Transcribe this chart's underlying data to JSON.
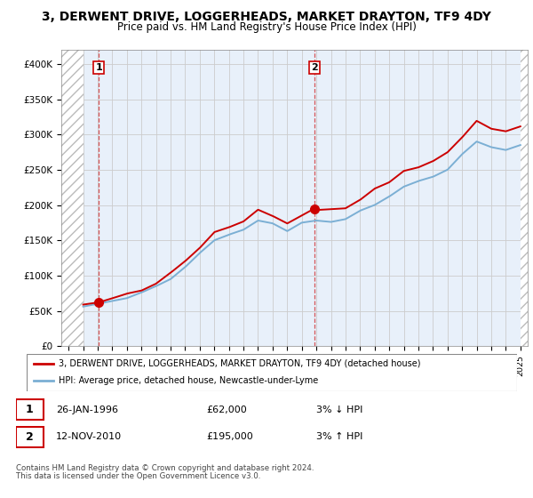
{
  "title": "3, DERWENT DRIVE, LOGGERHEADS, MARKET DRAYTON, TF9 4DY",
  "subtitle": "Price paid vs. HM Land Registry's House Price Index (HPI)",
  "legend_line1": "3, DERWENT DRIVE, LOGGERHEADS, MARKET DRAYTON, TF9 4DY (detached house)",
  "legend_line2": "HPI: Average price, detached house, Newcastle-under-Lyme",
  "sale1_label": "1",
  "sale1_date": "26-JAN-1996",
  "sale1_price": "£62,000",
  "sale1_hpi": "3% ↓ HPI",
  "sale2_label": "2",
  "sale2_date": "12-NOV-2010",
  "sale2_price": "£195,000",
  "sale2_hpi": "3% ↑ HPI",
  "footnote1": "Contains HM Land Registry data © Crown copyright and database right 2024.",
  "footnote2": "This data is licensed under the Open Government Licence v3.0.",
  "ylabel_ticks": [
    "£0",
    "£50K",
    "£100K",
    "£150K",
    "£200K",
    "£250K",
    "£300K",
    "£350K",
    "£400K"
  ],
  "ylabel_values": [
    0,
    50000,
    100000,
    150000,
    200000,
    250000,
    300000,
    350000,
    400000
  ],
  "xlim_start": 1993.5,
  "xlim_end": 2025.5,
  "ylim": [
    0,
    420000
  ],
  "sale1_x": 1996.07,
  "sale1_y": 62000,
  "sale2_x": 2010.87,
  "sale2_y": 195000,
  "property_color": "#cc0000",
  "hpi_color": "#7bafd4",
  "bg_color": "#e8f0fa",
  "plot_bg": "#ffffff",
  "hatch_start": 1993.5,
  "hatch_end": 1995.0,
  "hatch_start2": 2025.0,
  "hatch_end2": 2025.5,
  "data_start_year": 1995,
  "data_end_year": 2025
}
